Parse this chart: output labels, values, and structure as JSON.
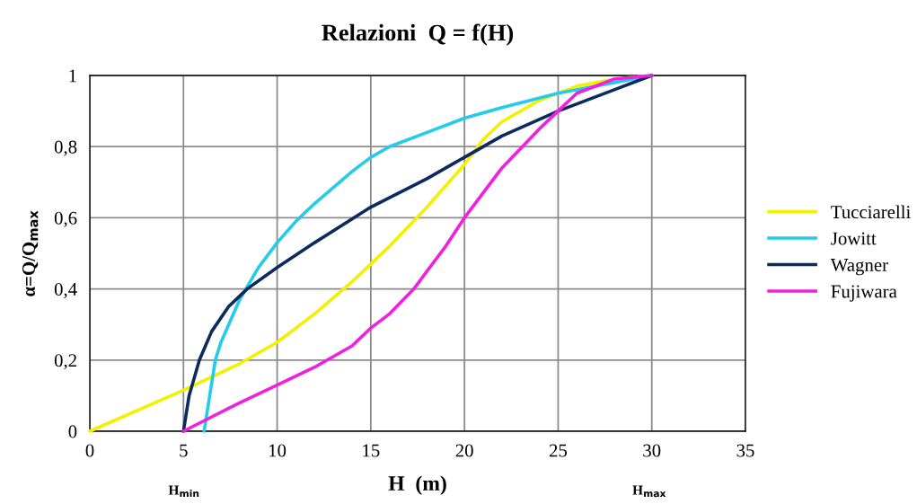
{
  "chart_data": {
    "type": "line",
    "title": "Relazioni  Q = f(H)",
    "xlabel": "H  (m)",
    "ylabel": "α=Q/Q$_{max}$",
    "xlim": [
      0,
      35
    ],
    "xticks": [
      0,
      5,
      10,
      15,
      20,
      25,
      30,
      35
    ],
    "ylim": [
      0,
      1
    ],
    "yticks": [
      0,
      {
        "value": 0.2,
        "label": "0,2"
      },
      {
        "value": 0.4,
        "label": "0,4"
      },
      {
        "value": 0.6,
        "label": "0,6"
      },
      {
        "value": 0.8,
        "label": "0,8"
      },
      1
    ],
    "grid": true,
    "legend": "right",
    "marker": "none",
    "line_style": "solid",
    "annotations": [
      "H$_{min}$",
      "H$_{max}$"
    ],
    "series": [
      {
        "name": "Tucciarelli",
        "color": "#f2f200",
        "x": [
          0,
          5,
          8,
          10,
          12,
          14,
          16,
          18,
          19,
          20,
          21,
          22,
          24,
          26,
          28,
          30
        ],
        "values": [
          0,
          0.115,
          0.19,
          0.25,
          0.33,
          0.42,
          0.52,
          0.63,
          0.69,
          0.75,
          0.82,
          0.87,
          0.93,
          0.97,
          0.99,
          1
        ]
      },
      {
        "name": "Jowitt",
        "color": "#22ccea",
        "x": [
          6.1,
          6.7,
          7,
          8,
          9,
          10,
          11,
          12,
          14,
          15,
          16,
          18,
          20,
          22,
          25,
          28,
          30
        ],
        "values": [
          0,
          0.2,
          0.25,
          0.37,
          0.46,
          0.53,
          0.59,
          0.64,
          0.73,
          0.77,
          0.8,
          0.84,
          0.88,
          0.91,
          0.95,
          0.98,
          1
        ]
      },
      {
        "name": "Wagner",
        "color": "#0d2a5c",
        "x": [
          5,
          5.3,
          5.85,
          6.5,
          7.4,
          8.4,
          10,
          12,
          15,
          18,
          20,
          22,
          25,
          28,
          30
        ],
        "values": [
          0,
          0.1,
          0.2,
          0.28,
          0.35,
          0.4,
          0.46,
          0.53,
          0.63,
          0.71,
          0.77,
          0.83,
          0.9,
          0.96,
          1
        ]
      },
      {
        "name": "Fujiwara",
        "color": "#f020e0",
        "x": [
          5,
          8,
          10,
          12,
          14,
          15,
          16,
          17.3,
          18,
          19,
          20,
          21,
          22,
          24,
          25,
          26,
          28,
          30
        ],
        "values": [
          0,
          0.08,
          0.13,
          0.18,
          0.24,
          0.29,
          0.33,
          0.4,
          0.45,
          0.52,
          0.6,
          0.67,
          0.74,
          0.85,
          0.9,
          0.95,
          0.99,
          1
        ]
      }
    ]
  }
}
